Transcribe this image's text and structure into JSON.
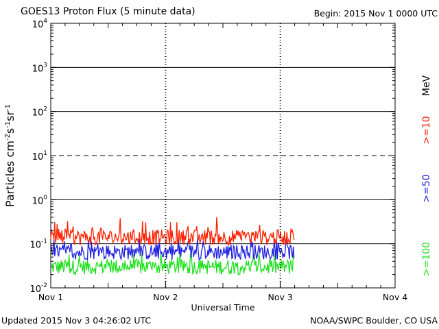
{
  "header": {
    "title": "GOES13 Proton Flux (5 minute data)",
    "begin": "Begin: 2015 Nov 1 0000 UTC"
  },
  "footer": {
    "updated": "Updated 2015 Nov  3 04:26:02 UTC",
    "credit": "NOAA/SWPC Boulder, CO USA"
  },
  "chart_data": {
    "type": "line",
    "title": "GOES13 Proton Flux (5 minute data)",
    "xlabel": "Universal Time",
    "ylabel": "Particles cm-2 s-1 sr-1",
    "yscale": "log",
    "ylim": [
      0.01,
      10000
    ],
    "y_ticks": [
      {
        "exp": "-2"
      },
      {
        "exp": "-1"
      },
      {
        "exp": "0"
      },
      {
        "exp": "1"
      },
      {
        "exp": "2"
      },
      {
        "exp": "3"
      },
      {
        "exp": "4"
      }
    ],
    "x_range_days": [
      0,
      3
    ],
    "x_ticks": [
      "Nov 1",
      "Nov 2",
      "Nov 3",
      "Nov 4"
    ],
    "data_end_day": 2.12,
    "reference_lines": [
      {
        "value": 0.1,
        "style": "solid"
      },
      {
        "value": 1,
        "style": "solid"
      },
      {
        "value": 10,
        "style": "dashed"
      },
      {
        "value": 100,
        "style": "solid"
      },
      {
        "value": 1000,
        "style": "solid"
      }
    ],
    "energy_unit": "MeV",
    "series": [
      {
        "name": ">=10",
        "color": "#ff2000",
        "base": 0.14,
        "min": 0.09,
        "max": 0.4
      },
      {
        "name": ">=50",
        "color": "#2020e0",
        "base": 0.065,
        "min": 0.04,
        "max": 0.13
      },
      {
        "name": ">=100",
        "color": "#20e020",
        "base": 0.03,
        "min": 0.018,
        "max": 0.06
      }
    ]
  }
}
